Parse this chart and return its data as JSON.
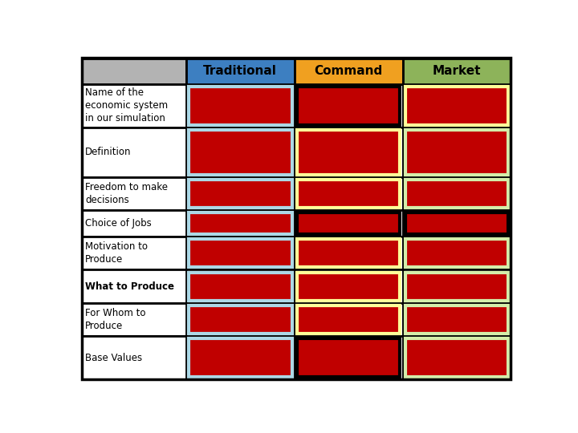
{
  "headers": [
    "",
    "Traditional",
    "Command",
    "Market"
  ],
  "header_colors": [
    "#b3b3b3",
    "#3d7fc1",
    "#f0a020",
    "#8db35a"
  ],
  "row_labels": [
    "Name of the\neconomic system\nin our simulation",
    "Definition",
    "Freedom to make\ndecisions",
    "Choice of Jobs",
    "Motivation to\nProduce",
    "What to Produce",
    "For Whom to\nProduce",
    "Base Values"
  ],
  "row_label_bold": [
    false,
    false,
    false,
    false,
    false,
    true,
    false,
    false
  ],
  "whom_bold_word": [
    false,
    false,
    false,
    false,
    false,
    false,
    true,
    false
  ],
  "cell_fill": "#c00000",
  "cell_border_colors": {
    "traditional": [
      "#add8e6",
      "#add8e6",
      "#add8e6",
      "#add8e6",
      "#add8e6",
      "#add8e6",
      "#add8e6",
      "#add8e6"
    ],
    "command": [
      "#000000",
      "#ffff99",
      "#ffff99",
      "#000000",
      "#ffff99",
      "#ffff99",
      "#ffff99",
      "#000000"
    ],
    "market": [
      "#ffff99",
      "#d4edaa",
      "#d4edaa",
      "#000000",
      "#d4edaa",
      "#d4edaa",
      "#d4edaa",
      "#d4edaa"
    ]
  },
  "outer_border_color": "#000000",
  "background_color": "#ffffff",
  "figsize": [
    7.2,
    5.4
  ],
  "dpi": 100
}
